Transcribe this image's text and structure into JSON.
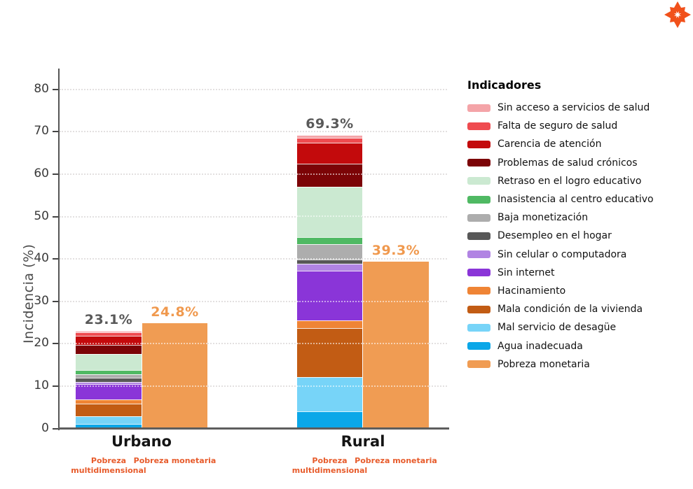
{
  "header": {
    "logo_color": "#F1511B"
  },
  "chart": {
    "y_axis_title": "Incidencia (%)",
    "y_ticks": [
      "0",
      "10",
      "20",
      "30",
      "40",
      "50",
      "60",
      "70",
      "80"
    ],
    "legend_title": "Indicadores",
    "group_labels": [
      "Urbano",
      "Rural"
    ],
    "bar_sublabels": [
      "Pobreza multidimensional",
      "Pobreza monetaria"
    ],
    "value_labels": {
      "urbano_multidimensional": "23.1%",
      "urbano_monetaria": "24.8%",
      "rural_multidimensional": "69.3%",
      "rural_monetaria": "39.3%"
    }
  },
  "chart_data": {
    "type": "bar",
    "stacked": true,
    "title": "",
    "ylabel": "Incidencia (%)",
    "ylim": [
      0,
      80
    ],
    "yticks": [
      0,
      10,
      20,
      30,
      40,
      50,
      60,
      70,
      80
    ],
    "grid": "dotted-horizontal",
    "legend_position": "right",
    "categories": [
      "Urbano",
      "Rural"
    ],
    "totals": {
      "pobreza_multidimensional": {
        "Urbano": 23.1,
        "Rural": 69.3
      },
      "pobreza_monetaria": {
        "Urbano": 24.8,
        "Rural": 39.3
      }
    },
    "indicators": [
      {
        "label": "Sin acceso a servicios de salud",
        "color": "#F4A4A8",
        "urbano": 0.4,
        "rural": 0.8
      },
      {
        "label": "Falta de seguro de salud",
        "color": "#EF4B50",
        "urbano": 0.8,
        "rural": 1.1
      },
      {
        "label": "Carencia de atención",
        "color": "#C30A0C",
        "urbano": 2.2,
        "rural": 5.0
      },
      {
        "label": "Problemas de salud crónicos",
        "color": "#7C0407",
        "urbano": 2.2,
        "rural": 5.4
      },
      {
        "label": "Retraso en el logro educativo",
        "color": "#CBE9D1",
        "urbano": 3.8,
        "rural": 11.8
      },
      {
        "label": "Inasistencia al centro educativo",
        "color": "#4FB963",
        "urbano": 1.0,
        "rural": 1.8
      },
      {
        "label": "Baja monetización",
        "color": "#ADADAD",
        "urbano": 0.8,
        "rural": 3.5
      },
      {
        "label": "Desempleo en el hogar",
        "color": "#585858",
        "urbano": 0.9,
        "rural": 1.1
      },
      {
        "label": "Sin celular o computadora",
        "color": "#B184E3",
        "urbano": 0.5,
        "rural": 1.6
      },
      {
        "label": "Sin internet",
        "color": "#8A35D8",
        "urbano": 3.7,
        "rural": 11.7
      },
      {
        "label": "Hacinamiento",
        "color": "#EF8435",
        "urbano": 1.0,
        "rural": 1.8
      },
      {
        "label": "Mala condición de la vivienda",
        "color": "#C25C14",
        "urbano": 3.0,
        "rural": 11.6
      },
      {
        "label": "Mal servicio de desagüe",
        "color": "#77D4F8",
        "urbano": 1.8,
        "rural": 8.0
      },
      {
        "label": "Agua inadecuada",
        "color": "#0BA7E8",
        "urbano": 1.0,
        "rural": 4.1
      }
    ],
    "monetary": {
      "label": "Pobreza monetaria",
      "color": "#F09C53",
      "urbano": 24.8,
      "rural": 39.3
    },
    "value_label_colors": {
      "multidimensional": "#595959",
      "monetaria": "#F0994E"
    },
    "sublabel_color": "#E75B2B"
  }
}
